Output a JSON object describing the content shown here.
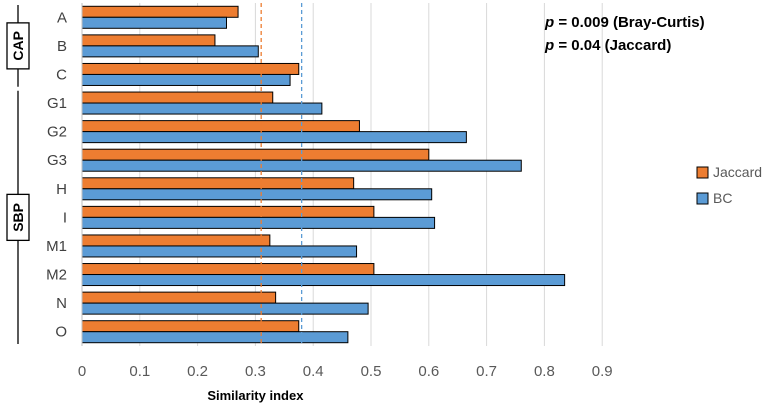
{
  "chart_data": {
    "type": "bar",
    "orientation": "horizontal",
    "title": "",
    "xlabel": "Similarity index",
    "ylabel": "",
    "xlim": [
      0,
      0.95
    ],
    "xticks": [
      0,
      0.1,
      0.2,
      0.3,
      0.4,
      0.5,
      0.6,
      0.7,
      0.8,
      0.9
    ],
    "xtick_labels": [
      "0",
      "0.1",
      "0.2",
      "0.3",
      "0.4",
      "0.5",
      "0.6",
      "0.7",
      "0.8",
      "0.9"
    ],
    "grid": true,
    "categories": [
      "A",
      "B",
      "C",
      "G1",
      "G2",
      "G3",
      "H",
      "I",
      "M1",
      "M2",
      "N",
      "O"
    ],
    "series": [
      {
        "name": "Jaccard",
        "color": "#ED7D31",
        "values": [
          0.27,
          0.23,
          0.375,
          0.33,
          0.48,
          0.6,
          0.47,
          0.505,
          0.325,
          0.505,
          0.335,
          0.375
        ]
      },
      {
        "name": "BC",
        "color": "#5B9BD5",
        "values": [
          0.25,
          0.305,
          0.36,
          0.415,
          0.665,
          0.76,
          0.605,
          0.61,
          0.475,
          0.835,
          0.495,
          0.46
        ]
      }
    ],
    "reference_lines": [
      {
        "series": "Jaccard",
        "value": 0.31,
        "style": "dashed",
        "color": "#ED7D31"
      },
      {
        "series": "BC",
        "value": 0.38,
        "style": "dashed",
        "color": "#5B9BD5"
      }
    ],
    "groups": [
      {
        "label": "CAP",
        "categories": [
          "A",
          "B",
          "C"
        ]
      },
      {
        "label": "SBP",
        "categories": [
          "G1",
          "G2",
          "G3",
          "H",
          "I",
          "M1",
          "M2",
          "N",
          "O"
        ]
      }
    ],
    "annotations": [
      {
        "prefix": "p",
        "text": " = 0.009 (Bray-Curtis)"
      },
      {
        "prefix": "p",
        "text": " = 0.04 (Jaccard)"
      }
    ],
    "legend": {
      "position": "right",
      "entries": [
        "Jaccard",
        "BC"
      ]
    }
  }
}
